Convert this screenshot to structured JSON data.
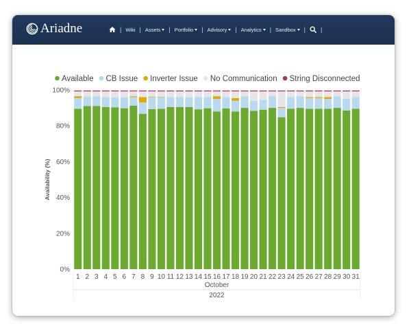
{
  "brand": {
    "name": "Ariadne"
  },
  "nav": {
    "home_icon": "home-icon",
    "items": [
      {
        "label": "Wiki",
        "dropdown": false
      },
      {
        "label": "Assets",
        "dropdown": true
      },
      {
        "label": "Portfolio",
        "dropdown": true
      },
      {
        "label": "Advisory",
        "dropdown": true
      },
      {
        "label": "Analytics",
        "dropdown": true
      },
      {
        "label": "Sandbox",
        "dropdown": true
      }
    ],
    "search_icon": "search-icon"
  },
  "colors": {
    "navbar": "#1d3557",
    "available": "#6aaa2e",
    "cb_issue": "#b8d9ef",
    "inverter_issue": "#e0a800",
    "no_communication": "#e6e6e6",
    "string_disconnected": "#b03060"
  },
  "chart_data": {
    "type": "bar",
    "stacked": true,
    "ylabel": "Availability (%)",
    "ylim": [
      0,
      100
    ],
    "yticks": [
      "0%",
      "20%",
      "40%",
      "60%",
      "80%",
      "100%"
    ],
    "xlabel_month": "October",
    "xlabel_year": "2022",
    "legend_position": "top",
    "grid": false,
    "categories": [
      "1",
      "2",
      "3",
      "4",
      "5",
      "6",
      "7",
      "8",
      "9",
      "10",
      "11",
      "12",
      "13",
      "14",
      "15",
      "16",
      "17",
      "18",
      "19",
      "20",
      "21",
      "22",
      "23",
      "24",
      "25",
      "26",
      "27",
      "28",
      "29",
      "30",
      "31"
    ],
    "series": [
      {
        "name": "Available",
        "color": "#6aaa2e",
        "values": [
          89.5,
          91,
          91,
          90.5,
          90.3,
          89.8,
          91.2,
          86.7,
          89.3,
          89.5,
          90.5,
          90.5,
          90.5,
          89.2,
          89.8,
          88,
          89.7,
          88,
          90,
          88.3,
          89,
          90,
          84.8,
          89.5,
          90,
          89.5,
          89.5,
          89.5,
          90,
          88.5,
          89.5
        ]
      },
      {
        "name": "CB Issue",
        "color": "#b8d9ef",
        "values": [
          6,
          5.3,
          5.5,
          5.5,
          5.5,
          6.2,
          4.8,
          6.3,
          6.7,
          6.5,
          5.5,
          5.5,
          5.5,
          6.8,
          6.2,
          7,
          6.3,
          6,
          6.5,
          5.7,
          5.5,
          6.5,
          5.2,
          6.5,
          6.5,
          6,
          6,
          5.5,
          6.5,
          6.5,
          6.5
        ]
      },
      {
        "name": "Inverter Issue",
        "color": "#e0a800",
        "values": [
          1,
          0,
          0,
          0,
          0,
          0,
          0.5,
          3,
          0.3,
          0.2,
          0,
          0,
          0,
          0,
          0,
          1.5,
          0,
          1.5,
          0,
          0,
          0,
          0,
          0.5,
          0,
          0,
          0.5,
          0.5,
          1,
          0,
          0,
          0
        ]
      },
      {
        "name": "No Communication",
        "color": "#e6e6e6",
        "values": [
          2.7,
          2.9,
          2.7,
          3.2,
          3.4,
          3.2,
          2.7,
          3.2,
          2.9,
          3,
          3.2,
          3.2,
          3.2,
          3.2,
          3.2,
          2.7,
          3.2,
          3.7,
          2.7,
          5.2,
          4.7,
          2.7,
          8.7,
          3.2,
          2.7,
          3.2,
          3.2,
          3.2,
          2.7,
          4.2,
          3.2
        ]
      },
      {
        "name": "String Disconnected",
        "color": "#b03060",
        "values": [
          0.5,
          0.5,
          0.5,
          0.5,
          0.5,
          0.5,
          0.5,
          0.5,
          0.5,
          0.5,
          0.5,
          0.5,
          0.5,
          0.5,
          0.5,
          0.5,
          0.5,
          0.5,
          0.5,
          0.5,
          0.5,
          0.5,
          0.5,
          0.5,
          0.5,
          0.5,
          0.5,
          0.5,
          0.5,
          0.5,
          0.5
        ]
      }
    ]
  }
}
